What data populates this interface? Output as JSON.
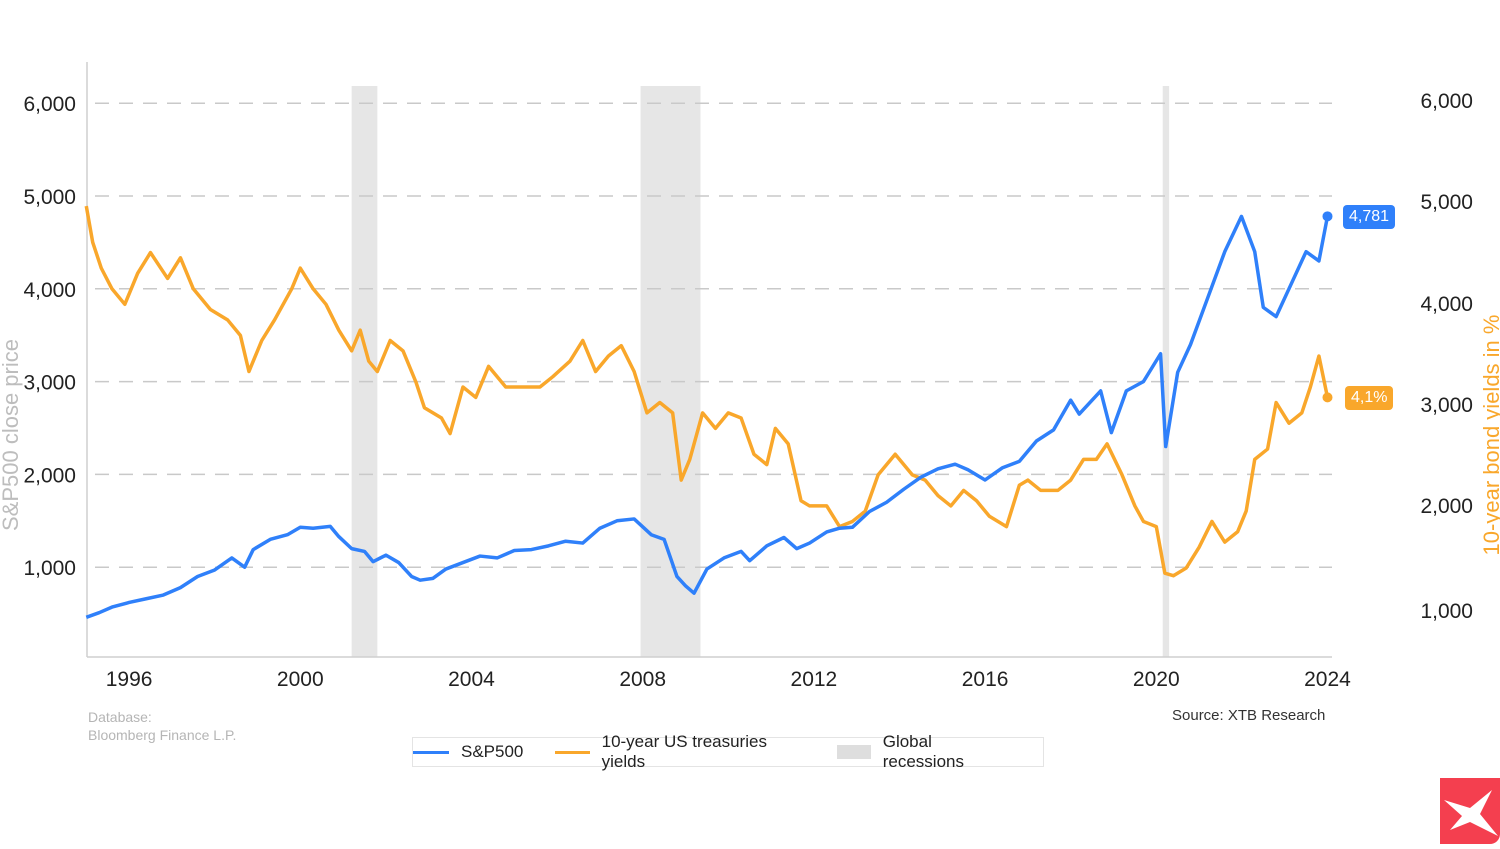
{
  "chart_data": {
    "type": "line",
    "title": "",
    "xlabel": "",
    "ylabel": "S&P500 close price",
    "y2label": "10-year bond yields in %",
    "xlim": [
      1995.0,
      2024.05
    ],
    "ylim": [
      0,
      6500
    ],
    "x_ticks": [
      1996,
      2000,
      2004,
      2008,
      2012,
      2016,
      2020,
      2024
    ],
    "x_tick_labels": [
      "1996",
      "2000",
      "2004",
      "2008",
      "2012",
      "2016",
      "2020",
      "2024"
    ],
    "y_ticks": [
      1000,
      2000,
      3000,
      4000,
      5000,
      6000
    ],
    "y_tick_labels": [
      "1,000",
      "2,000",
      "3,000",
      "4,000",
      "5,000",
      "6,000"
    ],
    "y2_tick_labels": [
      "1,000",
      "2,000",
      "3,000",
      "4,000",
      "5,000",
      "6,000"
    ],
    "grid": "horizontal-dashed",
    "legend_position": "bottom-center",
    "recessions": [
      {
        "start": 2001.2,
        "end": 2001.8
      },
      {
        "start": 2007.95,
        "end": 2009.35
      },
      {
        "start": 2020.15,
        "end": 2020.3
      }
    ],
    "series": [
      {
        "name": "S&P500",
        "color": "#2f80fa",
        "axis": "left",
        "end_label": "4,781",
        "x": [
          1995.0,
          1995.3,
          1995.6,
          1996.0,
          1996.4,
          1996.8,
          1997.2,
          1997.6,
          1998.0,
          1998.4,
          1998.7,
          1998.9,
          1999.3,
          1999.7,
          2000.0,
          2000.3,
          2000.7,
          2000.9,
          2001.2,
          2001.5,
          2001.7,
          2002.0,
          2002.3,
          2002.6,
          2002.8,
          2003.1,
          2003.4,
          2003.8,
          2004.2,
          2004.6,
          2005.0,
          2005.4,
          2005.8,
          2006.2,
          2006.6,
          2007.0,
          2007.4,
          2007.8,
          2008.2,
          2008.5,
          2008.8,
          2009.0,
          2009.2,
          2009.5,
          2009.9,
          2010.3,
          2010.5,
          2010.9,
          2011.3,
          2011.6,
          2011.9,
          2012.3,
          2012.6,
          2012.9,
          2013.3,
          2013.7,
          2014.1,
          2014.5,
          2014.9,
          2015.3,
          2015.6,
          2016.0,
          2016.4,
          2016.8,
          2017.2,
          2017.6,
          2018.0,
          2018.2,
          2018.7,
          2018.95,
          2019.3,
          2019.7,
          2020.1,
          2020.22,
          2020.5,
          2020.8,
          2021.2,
          2021.6,
          2021.99,
          2022.3,
          2022.5,
          2022.8,
          2023.1,
          2023.5,
          2023.8,
          2024.0
        ],
        "values": [
          460,
          510,
          570,
          620,
          660,
          700,
          780,
          900,
          970,
          1100,
          1000,
          1190,
          1300,
          1350,
          1430,
          1420,
          1440,
          1330,
          1200,
          1170,
          1060,
          1130,
          1050,
          900,
          860,
          880,
          980,
          1050,
          1120,
          1100,
          1180,
          1190,
          1230,
          1280,
          1260,
          1420,
          1500,
          1520,
          1350,
          1300,
          900,
          800,
          720,
          980,
          1100,
          1170,
          1070,
          1230,
          1320,
          1200,
          1260,
          1380,
          1420,
          1430,
          1600,
          1700,
          1840,
          1970,
          2060,
          2110,
          2050,
          1940,
          2070,
          2140,
          2360,
          2480,
          2800,
          2650,
          2900,
          2450,
          2900,
          3000,
          3300,
          2300,
          3100,
          3400,
          3900,
          4400,
          4780,
          4400,
          3800,
          3700,
          4000,
          4400,
          4300,
          4781
        ]
      },
      {
        "name": "10-year US treasuries yields",
        "color": "#f9a72b",
        "axis": "right",
        "unit": "%",
        "end_label": "4,1%",
        "x": [
          1995.0,
          1995.15,
          1995.35,
          1995.6,
          1995.9,
          1996.2,
          1996.5,
          1996.9,
          1997.2,
          1997.5,
          1997.9,
          1998.3,
          1998.6,
          1998.8,
          1999.1,
          1999.4,
          1999.8,
          2000.0,
          2000.3,
          2000.6,
          2000.9,
          2001.2,
          2001.4,
          2001.6,
          2001.8,
          2002.1,
          2002.4,
          2002.7,
          2002.9,
          2003.3,
          2003.5,
          2003.8,
          2004.1,
          2004.4,
          2004.8,
          2005.2,
          2005.6,
          2005.9,
          2006.3,
          2006.6,
          2006.9,
          2007.2,
          2007.5,
          2007.8,
          2008.1,
          2008.4,
          2008.7,
          2008.9,
          2009.1,
          2009.4,
          2009.7,
          2010.0,
          2010.3,
          2010.6,
          2010.9,
          2011.1,
          2011.4,
          2011.7,
          2011.9,
          2012.3,
          2012.6,
          2012.9,
          2013.2,
          2013.5,
          2013.9,
          2014.3,
          2014.6,
          2014.9,
          2015.2,
          2015.5,
          2015.8,
          2016.1,
          2016.5,
          2016.8,
          2017.0,
          2017.3,
          2017.7,
          2018.0,
          2018.3,
          2018.6,
          2018.85,
          2019.2,
          2019.5,
          2019.7,
          2020.0,
          2020.2,
          2020.4,
          2020.7,
          2021.0,
          2021.3,
          2021.6,
          2021.9,
          2022.1,
          2022.3,
          2022.6,
          2022.8,
          2023.1,
          2023.4,
          2023.6,
          2023.8,
          2024.0
        ],
        "values": [
          7.8,
          7.1,
          6.6,
          6.2,
          5.9,
          6.5,
          6.9,
          6.4,
          6.8,
          6.2,
          5.8,
          5.6,
          5.3,
          4.6,
          5.2,
          5.6,
          6.2,
          6.6,
          6.2,
          5.9,
          5.4,
          5.0,
          5.4,
          4.8,
          4.6,
          5.2,
          5.0,
          4.4,
          3.9,
          3.7,
          3.4,
          4.3,
          4.1,
          4.7,
          4.3,
          4.3,
          4.3,
          4.5,
          4.8,
          5.2,
          4.6,
          4.9,
          5.1,
          4.6,
          3.8,
          4.0,
          3.8,
          2.5,
          2.9,
          3.8,
          3.5,
          3.8,
          3.7,
          3.0,
          2.8,
          3.5,
          3.2,
          2.1,
          2.0,
          2.0,
          1.6,
          1.7,
          1.9,
          2.6,
          3.0,
          2.6,
          2.5,
          2.2,
          2.0,
          2.3,
          2.1,
          1.8,
          1.6,
          2.4,
          2.5,
          2.3,
          2.3,
          2.5,
          2.9,
          2.9,
          3.2,
          2.6,
          2.0,
          1.7,
          1.6,
          0.7,
          0.65,
          0.8,
          1.2,
          1.7,
          1.3,
          1.5,
          1.9,
          2.9,
          3.1,
          4.0,
          3.6,
          3.8,
          4.3,
          4.9,
          4.1
        ]
      }
    ]
  },
  "labels": {
    "database_line1": "Database:",
    "database_line2": "Bloomberg Finance L.P.",
    "source": "Source: XTB Research",
    "legend_sp500": "S&P500",
    "legend_yields": "10-year US treasuries yields",
    "legend_recessions": "Global recessions"
  },
  "colors": {
    "sp500": "#2f80fa",
    "yields": "#f9a72b",
    "recession": "#e6e6e6",
    "logo": "#f43f4f"
  }
}
